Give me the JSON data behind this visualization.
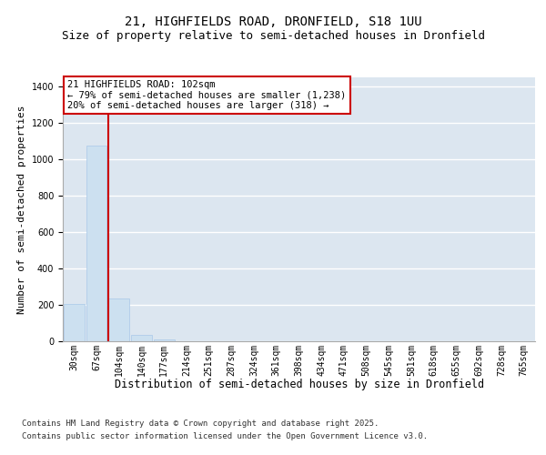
{
  "title_line1": "21, HIGHFIELDS ROAD, DRONFIELD, S18 1UU",
  "title_line2": "Size of property relative to semi-detached houses in Dronfield",
  "xlabel": "Distribution of semi-detached houses by size in Dronfield",
  "ylabel": "Number of semi-detached properties",
  "bar_labels": [
    "30sqm",
    "67sqm",
    "104sqm",
    "140sqm",
    "177sqm",
    "214sqm",
    "251sqm",
    "287sqm",
    "324sqm",
    "361sqm",
    "398sqm",
    "434sqm",
    "471sqm",
    "508sqm",
    "545sqm",
    "581sqm",
    "618sqm",
    "655sqm",
    "692sqm",
    "728sqm",
    "765sqm"
  ],
  "bar_values": [
    205,
    1075,
    235,
    35,
    12,
    0,
    0,
    0,
    0,
    0,
    0,
    0,
    0,
    0,
    0,
    0,
    0,
    0,
    0,
    0,
    0
  ],
  "bar_color": "#cce0f0",
  "bar_edge_color": "#a8c8e8",
  "background_color": "#dce6f0",
  "grid_color": "#ffffff",
  "vline_color": "#cc0000",
  "annotation_line1": "21 HIGHFIELDS ROAD: 102sqm",
  "annotation_line2": "← 79% of semi-detached houses are smaller (1,238)",
  "annotation_line3": "20% of semi-detached houses are larger (318) →",
  "annotation_box_color": "#ffffff",
  "annotation_box_edge_color": "#cc0000",
  "ylim": [
    0,
    1450
  ],
  "yticks": [
    0,
    200,
    400,
    600,
    800,
    1000,
    1200,
    1400
  ],
  "vline_bin_index": 2,
  "footnote_line1": "Contains HM Land Registry data © Crown copyright and database right 2025.",
  "footnote_line2": "Contains public sector information licensed under the Open Government Licence v3.0.",
  "title_fontsize": 10,
  "subtitle_fontsize": 9,
  "axis_label_fontsize": 8.5,
  "tick_fontsize": 7,
  "annotation_fontsize": 7.5,
  "footnote_fontsize": 6.5,
  "ylabel_fontsize": 8
}
